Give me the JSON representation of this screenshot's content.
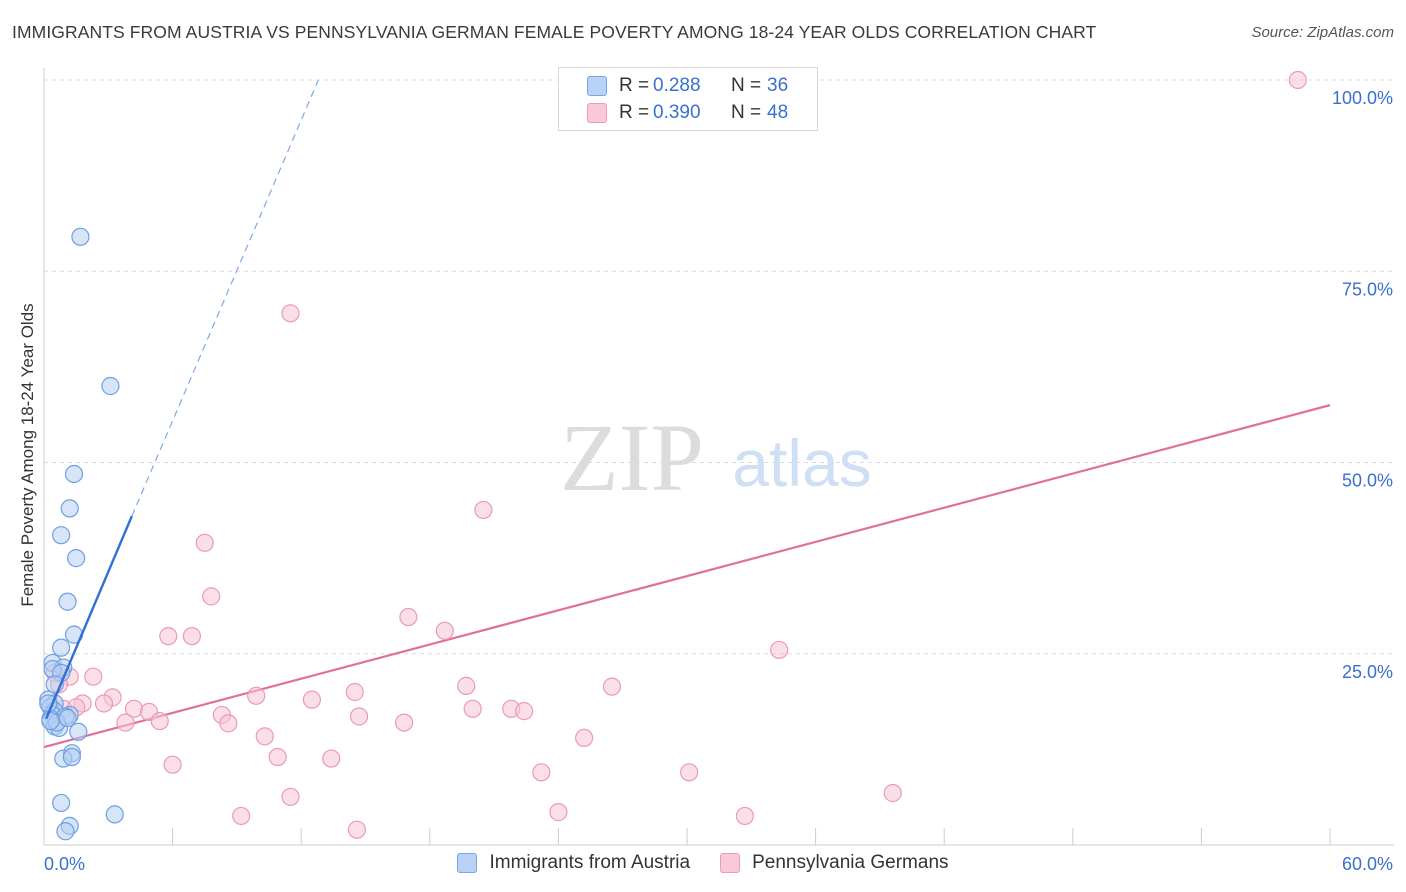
{
  "title": "IMMIGRANTS FROM AUSTRIA VS PENNSYLVANIA GERMAN FEMALE POVERTY AMONG 18-24 YEAR OLDS CORRELATION CHART",
  "source": "Source: ZipAtlas.com",
  "watermark": {
    "zip": "ZIP",
    "atlas": "atlas"
  },
  "colors": {
    "blue": "#3a78d8",
    "blue_fill": "#a9c8f2",
    "pink": "#e0709a",
    "pink_fill": "#f5b8cc",
    "axis_text": "#3a6fd0"
  },
  "legend": {
    "series1": {
      "r_label": "R =",
      "r_value": "0.288",
      "n_label": "N =",
      "n_value": "36"
    },
    "series2": {
      "r_label": "R =",
      "r_value": "0.390",
      "n_label": "N =",
      "n_value": "48"
    }
  },
  "bottom_legend": [
    "Immigrants from Austria",
    "Pennsylvania Germans"
  ],
  "chart_data": {
    "type": "scatter",
    "title": "IMMIGRANTS FROM AUSTRIA VS PENNSYLVANIA GERMAN FEMALE POVERTY AMONG 18-24 YEAR OLDS CORRELATION CHART",
    "xlabel": "",
    "ylabel": "Female Poverty Among 18-24 Year Olds",
    "xlim": [
      0,
      60
    ],
    "ylim": [
      0,
      102
    ],
    "x_tick_labels": [
      "0.0%",
      "60.0%"
    ],
    "y_ticks": [
      25,
      50,
      75,
      100
    ],
    "y_tick_labels": [
      "25.0%",
      "50.0%",
      "75.0%",
      "100.0%"
    ],
    "series": [
      {
        "name": "Immigrants from Austria",
        "color": "#3a78d8",
        "r": 0.288,
        "n": 36,
        "trend": {
          "x0": 0.1,
          "y0": 16.5,
          "x1": 4.1,
          "y1": 43.0,
          "dashed_to_x": 12.8,
          "dashed_to_y": 100
        },
        "points": [
          [
            1.7,
            79.5
          ],
          [
            3.1,
            60.0
          ],
          [
            1.4,
            48.5
          ],
          [
            1.2,
            44.0
          ],
          [
            0.8,
            40.5
          ],
          [
            1.5,
            37.5
          ],
          [
            1.1,
            31.8
          ],
          [
            1.4,
            27.5
          ],
          [
            0.8,
            25.8
          ],
          [
            0.4,
            23.8
          ],
          [
            0.9,
            23.2
          ],
          [
            0.4,
            23.0
          ],
          [
            0.8,
            22.5
          ],
          [
            0.5,
            21.0
          ],
          [
            0.2,
            19.0
          ],
          [
            0.5,
            18.5
          ],
          [
            0.3,
            18.0
          ],
          [
            0.5,
            17.5
          ],
          [
            0.4,
            17.0
          ],
          [
            1.2,
            17.0
          ],
          [
            0.3,
            16.5
          ],
          [
            1.0,
            16.8
          ],
          [
            0.5,
            15.5
          ],
          [
            0.7,
            15.3
          ],
          [
            1.6,
            14.8
          ],
          [
            1.3,
            12.0
          ],
          [
            0.9,
            11.3
          ],
          [
            1.3,
            11.5
          ],
          [
            0.8,
            5.5
          ],
          [
            3.3,
            4.0
          ],
          [
            1.2,
            2.5
          ],
          [
            1.0,
            1.8
          ],
          [
            0.2,
            18.5
          ],
          [
            0.6,
            16.0
          ],
          [
            0.3,
            16.2
          ],
          [
            1.1,
            16.6
          ]
        ]
      },
      {
        "name": "Pennsylvania Germans",
        "color": "#e0709a",
        "r": 0.39,
        "n": 48,
        "trend": {
          "x0": 0,
          "y0": 12.8,
          "x1": 60,
          "y1": 57.5
        },
        "points": [
          [
            58.5,
            100.0
          ],
          [
            11.5,
            69.5
          ],
          [
            20.5,
            43.8
          ],
          [
            7.5,
            39.5
          ],
          [
            7.8,
            32.5
          ],
          [
            17.0,
            29.8
          ],
          [
            18.7,
            28.0
          ],
          [
            5.8,
            27.3
          ],
          [
            6.9,
            27.3
          ],
          [
            34.3,
            25.5
          ],
          [
            1.2,
            22.0
          ],
          [
            2.3,
            22.0
          ],
          [
            0.7,
            21.0
          ],
          [
            19.7,
            20.8
          ],
          [
            26.5,
            20.7
          ],
          [
            14.5,
            20.0
          ],
          [
            9.9,
            19.5
          ],
          [
            3.2,
            19.3
          ],
          [
            12.5,
            19.0
          ],
          [
            1.8,
            18.5
          ],
          [
            2.8,
            18.5
          ],
          [
            0.9,
            17.8
          ],
          [
            20.0,
            17.8
          ],
          [
            21.8,
            17.8
          ],
          [
            22.4,
            17.5
          ],
          [
            4.2,
            17.8
          ],
          [
            4.9,
            17.4
          ],
          [
            8.3,
            17.0
          ],
          [
            14.7,
            16.8
          ],
          [
            16.8,
            16.0
          ],
          [
            3.8,
            16.0
          ],
          [
            5.4,
            16.2
          ],
          [
            8.6,
            15.9
          ],
          [
            10.3,
            14.2
          ],
          [
            25.2,
            14.0
          ],
          [
            10.9,
            11.5
          ],
          [
            13.4,
            11.3
          ],
          [
            6.0,
            10.5
          ],
          [
            23.2,
            9.5
          ],
          [
            30.1,
            9.5
          ],
          [
            11.5,
            6.3
          ],
          [
            39.6,
            6.8
          ],
          [
            24.0,
            4.3
          ],
          [
            9.2,
            3.8
          ],
          [
            32.7,
            3.8
          ],
          [
            14.6,
            2.0
          ],
          [
            0.5,
            22.5
          ],
          [
            1.5,
            18.0
          ]
        ]
      }
    ]
  }
}
